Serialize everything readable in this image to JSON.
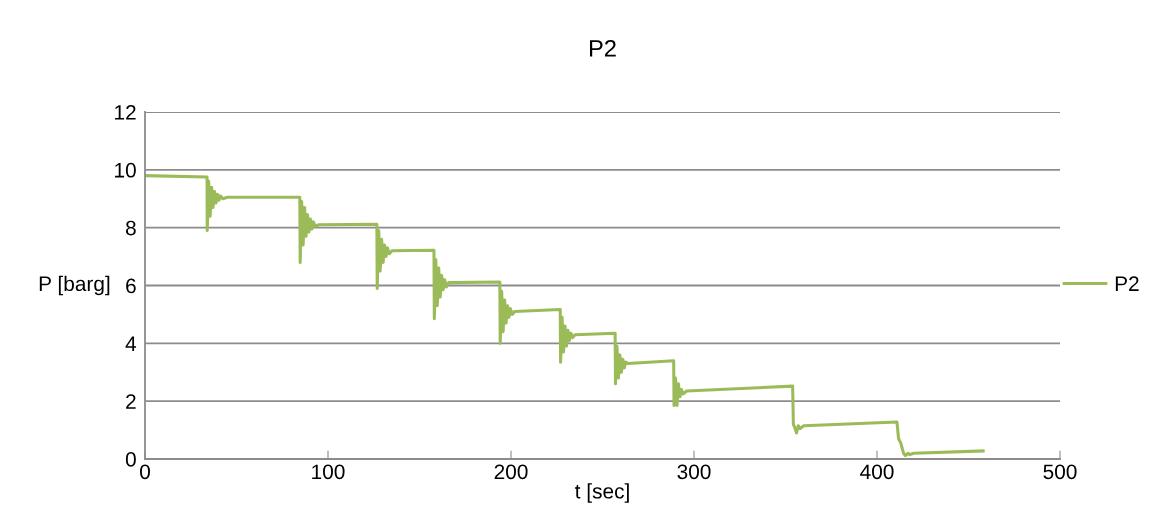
{
  "chart_data": {
    "type": "line",
    "title": "P2",
    "xlabel": "t [sec]",
    "ylabel": "P [barg]",
    "xlim": [
      0,
      500
    ],
    "xticks": [
      0,
      100,
      200,
      300,
      400,
      500
    ],
    "ylim": [
      0,
      12
    ],
    "yticks": [
      0,
      2,
      4,
      6,
      8,
      10,
      12
    ],
    "grid": "y",
    "legend": "right",
    "marker": "none",
    "line_style": "solid",
    "series": [
      {
        "name": "P2",
        "color": "#9bbb59",
        "x": [
          0,
          33.9,
          34.0,
          34.8,
          35.6,
          36.4,
          37.2,
          38,
          38.8,
          39.6,
          40.4,
          41.2,
          42.5,
          45,
          84.6,
          84.8,
          85.6,
          86.4,
          87.2,
          88,
          88.8,
          89.6,
          90.4,
          91.2,
          92,
          93,
          95,
          126.7,
          126.9,
          127.7,
          128.5,
          129.3,
          130.1,
          130.9,
          131.7,
          132.5,
          133.5,
          135,
          157.9,
          158.1,
          158.9,
          159.7,
          160.5,
          161.3,
          162.1,
          162.9,
          163.7,
          164.7,
          166,
          193.9,
          194.1,
          194.9,
          195.7,
          196.5,
          197.3,
          198.1,
          198.9,
          199.7,
          200.7,
          202,
          226.9,
          227.1,
          227.9,
          228.7,
          229.5,
          230.3,
          231.1,
          231.9,
          232.7,
          233.7,
          235,
          256.9,
          257.1,
          257.9,
          258.7,
          259.5,
          260.3,
          261.1,
          261.9,
          262.7,
          264,
          288.9,
          289.1,
          289.9,
          290.7,
          291.5,
          292.3,
          293.1,
          294,
          296,
          353.9,
          354.3,
          355,
          356,
          357,
          358,
          360,
          410.9,
          411.8,
          413,
          414.5,
          415.5,
          417,
          418,
          420,
          458
        ],
        "values": [
          9.8,
          9.75,
          7.9,
          9.6,
          8.4,
          9.4,
          8.7,
          9.25,
          8.85,
          9.15,
          8.95,
          9.1,
          9.0,
          9.05,
          9.05,
          6.8,
          8.9,
          7.4,
          8.7,
          7.7,
          8.45,
          7.85,
          8.3,
          7.95,
          8.2,
          8.05,
          8.1,
          8.12,
          5.9,
          7.9,
          6.5,
          7.6,
          6.8,
          7.4,
          7.0,
          7.3,
          7.1,
          7.2,
          7.22,
          4.85,
          6.9,
          5.3,
          6.6,
          5.6,
          6.35,
          5.85,
          6.2,
          5.95,
          6.1,
          6.12,
          4.0,
          5.8,
          4.4,
          5.5,
          4.7,
          5.3,
          4.9,
          5.2,
          5.0,
          5.1,
          5.17,
          3.35,
          4.9,
          3.7,
          4.6,
          3.9,
          4.45,
          4.1,
          4.35,
          4.2,
          4.3,
          4.35,
          2.6,
          3.9,
          2.8,
          3.6,
          3.0,
          3.45,
          3.15,
          3.35,
          3.3,
          3.4,
          1.85,
          2.8,
          1.85,
          2.6,
          2.15,
          2.4,
          2.25,
          2.35,
          2.52,
          1.2,
          1.1,
          0.9,
          1.15,
          1.05,
          1.15,
          1.28,
          0.7,
          0.55,
          0.2,
          0.12,
          0.2,
          0.15,
          0.2,
          0.28
        ]
      }
    ]
  }
}
